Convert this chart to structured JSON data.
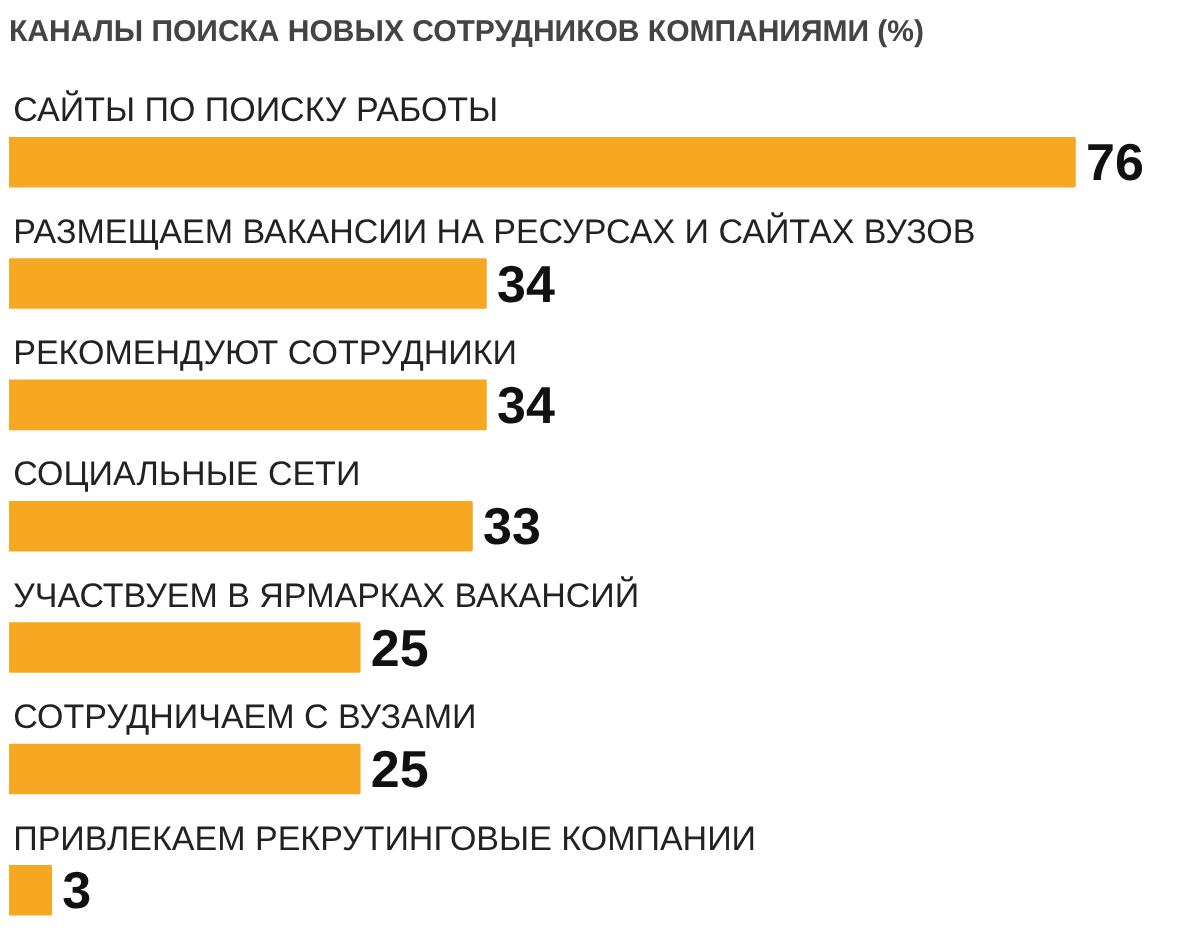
{
  "chart_data": {
    "type": "bar",
    "orientation": "horizontal",
    "title": "КАНАЛЫ ПОИСКА НОВЫХ СОТРУДНИКОВ КОМПАНИЯМИ (%)",
    "categories": [
      "САЙТЫ ПО ПОИСКУ РАБОТЫ",
      "РАЗМЕЩАЕМ ВАКАНСИИ НА РЕСУРСАХ И САЙТАХ ВУЗОВ",
      "РЕКОМЕНДУЮТ СОТРУДНИКИ",
      "СОЦИАЛЬНЫЕ СЕТИ",
      "УЧАСТВУЕМ В ЯРМАРКАХ ВАКАНСИЙ",
      "СОТРУДНИЧАЕМ С ВУЗАМИ",
      "ПРИВЛЕКАЕМ РЕКРУТИНГОВЫЕ КОМПАНИИ"
    ],
    "values": [
      76,
      34,
      34,
      33,
      25,
      25,
      3
    ],
    "color": "#f7a823",
    "data_labels": true,
    "tick_labels": false
  }
}
